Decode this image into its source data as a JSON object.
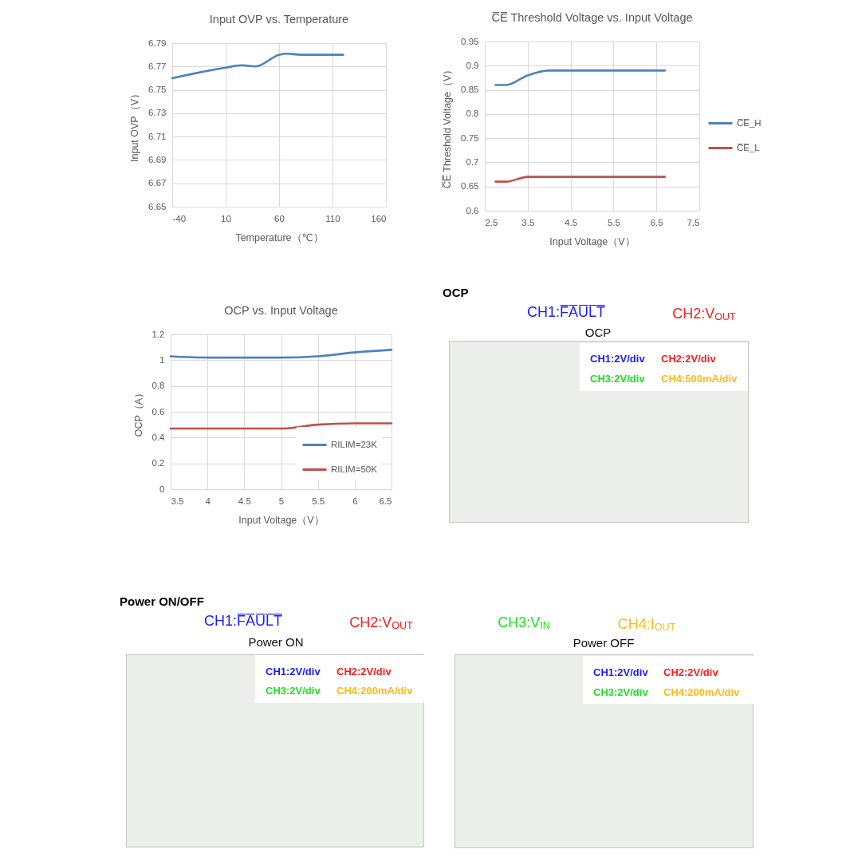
{
  "chart_data": [
    {
      "type": "line",
      "title": "Input OVP vs. Temperature",
      "xlabel": "Temperature（℃）",
      "ylabel": "Input OVP（V）",
      "x": [
        -40,
        10,
        25,
        38,
        60,
        67,
        80,
        120
      ],
      "series": [
        {
          "color": "#4f81bd",
          "values": [
            6.76,
            6.769,
            6.771,
            6.77,
            6.78,
            6.781,
            6.78,
            6.78
          ]
        }
      ],
      "xlim": [
        -40,
        160
      ],
      "xticks": [
        -40,
        10,
        60,
        110,
        160
      ],
      "ylim": [
        6.65,
        6.79
      ],
      "yticks": [
        6.65,
        6.67,
        6.69,
        6.71,
        6.73,
        6.75,
        6.77,
        6.79
      ],
      "grid": true
    },
    {
      "type": "line",
      "title": "C̅E̅ Threshold Voltage vs. Input Voltage",
      "xlabel": "Input Voltage（V）",
      "ylabel": "C̅E̅ Threshold Voltage（V）",
      "x": [
        2.75,
        3,
        3.5,
        4,
        4.5,
        5,
        5.5,
        6,
        6.5,
        6.7
      ],
      "series": [
        {
          "name": "C̅E̅_H",
          "color": "#4f81bd",
          "values": [
            0.86,
            0.86,
            0.88,
            0.89,
            0.89,
            0.89,
            0.89,
            0.89,
            0.89,
            0.89
          ]
        },
        {
          "name": "C̅E̅_L",
          "color": "#c0504d",
          "values": [
            0.66,
            0.66,
            0.67,
            0.67,
            0.67,
            0.67,
            0.67,
            0.67,
            0.67,
            0.67
          ]
        }
      ],
      "xlim": [
        2.5,
        7.5
      ],
      "xticks": [
        2.5,
        3.5,
        4.5,
        5.5,
        6.5,
        7.5
      ],
      "ylim": [
        0.6,
        0.95
      ],
      "yticks": [
        0.6,
        0.65,
        0.7,
        0.75,
        0.8,
        0.85,
        0.9,
        0.95
      ],
      "grid": true,
      "legend": "right"
    },
    {
      "type": "line",
      "title": "OCP vs. Input Voltage",
      "xlabel": "Input Voltage（V）",
      "ylabel": "OCP（A）",
      "x": [
        3.5,
        4,
        4.5,
        5,
        5.5,
        6,
        6.5
      ],
      "series": [
        {
          "name": "RILIM=23K",
          "color": "#4f81bd",
          "values": [
            1.03,
            1.02,
            1.02,
            1.02,
            1.03,
            1.06,
            1.08
          ]
        },
        {
          "name": "RILIM=50K",
          "color": "#c0504d",
          "values": [
            0.47,
            0.47,
            0.47,
            0.47,
            0.5,
            0.51,
            0.51
          ]
        }
      ],
      "xlim": [
        3.5,
        6.5
      ],
      "xticks": [
        3.5,
        4,
        4.5,
        5,
        5.5,
        6,
        6.5
      ],
      "ylim": [
        0,
        1.2
      ],
      "yticks": [
        0,
        0.2,
        0.4,
        0.6,
        0.8,
        1,
        1.2
      ],
      "grid": true,
      "legend": "bottom right"
    },
    {
      "type": "other",
      "title": "OCP",
      "annotations": [
        "OCP",
        "CH1:F̅A̅U̅L̅T̅",
        "CH2:V$_{OUT}$",
        "CH1:2V/div",
        "CH2:2V/div",
        "CH3:2V/div",
        "CH4:500mA/div"
      ]
    },
    {
      "type": "other",
      "title": "Power ON",
      "annotations": [
        "Power ON/OFF",
        "CH1:F̅A̅U̅L̅T̅",
        "CH2:V$_{OUT}$",
        "CH1:2V/div",
        "CH2:2V/div",
        "CH3:2V/div",
        "CH4:200mA/div"
      ]
    },
    {
      "type": "other",
      "title": "Power OFF",
      "annotations": [
        "CH3:V$_{IN}$",
        "CH4:I$_{OUT}$",
        "CH1:2V/div",
        "CH2:2V/div",
        "CH3:2V/div",
        "CH4:200mA/div"
      ]
    }
  ]
}
